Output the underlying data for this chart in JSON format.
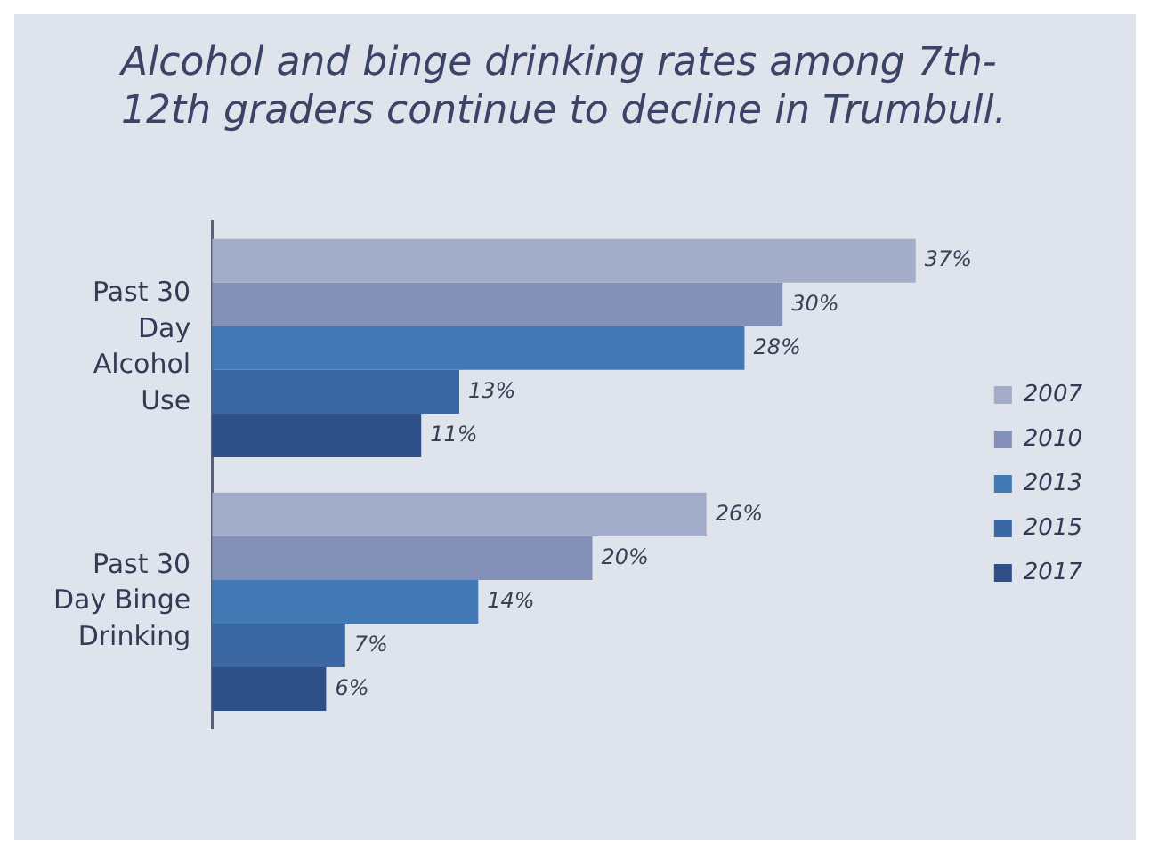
{
  "chart_data": {
    "type": "bar",
    "orientation": "horizontal",
    "title": "Alcohol and binge drinking rates among 7th-12th graders continue to decline in Trumbull.",
    "categories": [
      "Past 30 Day Alcohol Use",
      "Past 30 Day Binge Drinking"
    ],
    "series": [
      {
        "name": "2007",
        "color": "#a3acc9",
        "values": [
          37,
          26
        ],
        "value_labels": [
          "37%",
          "26%"
        ]
      },
      {
        "name": "2010",
        "color": "#8391b9",
        "values": [
          30,
          20
        ],
        "value_labels": [
          "30%",
          "20%"
        ]
      },
      {
        "name": "2013",
        "color": "#4379b5",
        "values": [
          28,
          14
        ],
        "value_labels": [
          "28%",
          "14%"
        ]
      },
      {
        "name": "2015",
        "color": "#3b67a3",
        "values": [
          13,
          7
        ],
        "value_labels": [
          "13%",
          "7%"
        ]
      },
      {
        "name": "2017",
        "color": "#2f4f88",
        "values": [
          11,
          6
        ],
        "value_labels": [
          "11%",
          "6%"
        ]
      }
    ],
    "legend": "right",
    "tick_labels": "y"
  }
}
